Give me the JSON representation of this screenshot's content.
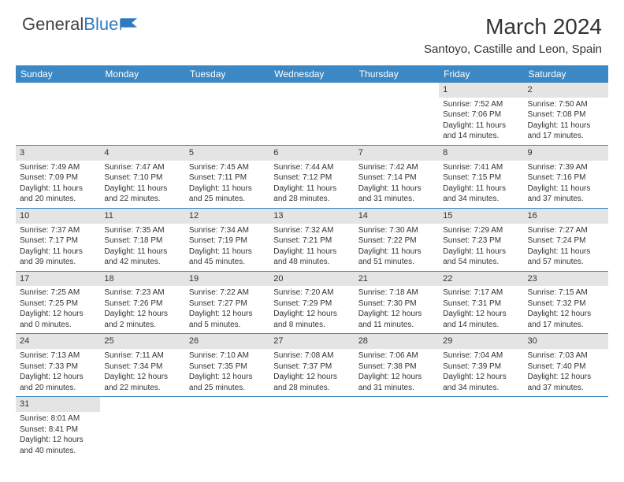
{
  "logo": {
    "text1": "General",
    "text2": "Blue"
  },
  "title": "March 2024",
  "location": "Santoyo, Castille and Leon, Spain",
  "colors": {
    "header_bg": "#3b88c5",
    "header_text": "#ffffff",
    "daynum_bg": "#e4e4e4",
    "border": "#3b88c5",
    "text": "#333333",
    "logo_blue": "#2f7bbf"
  },
  "weekdays": [
    "Sunday",
    "Monday",
    "Tuesday",
    "Wednesday",
    "Thursday",
    "Friday",
    "Saturday"
  ],
  "weeks": [
    [
      null,
      null,
      null,
      null,
      null,
      {
        "n": "1",
        "sr": "Sunrise: 7:52 AM",
        "ss": "Sunset: 7:06 PM",
        "d1": "Daylight: 11 hours",
        "d2": "and 14 minutes."
      },
      {
        "n": "2",
        "sr": "Sunrise: 7:50 AM",
        "ss": "Sunset: 7:08 PM",
        "d1": "Daylight: 11 hours",
        "d2": "and 17 minutes."
      }
    ],
    [
      {
        "n": "3",
        "sr": "Sunrise: 7:49 AM",
        "ss": "Sunset: 7:09 PM",
        "d1": "Daylight: 11 hours",
        "d2": "and 20 minutes."
      },
      {
        "n": "4",
        "sr": "Sunrise: 7:47 AM",
        "ss": "Sunset: 7:10 PM",
        "d1": "Daylight: 11 hours",
        "d2": "and 22 minutes."
      },
      {
        "n": "5",
        "sr": "Sunrise: 7:45 AM",
        "ss": "Sunset: 7:11 PM",
        "d1": "Daylight: 11 hours",
        "d2": "and 25 minutes."
      },
      {
        "n": "6",
        "sr": "Sunrise: 7:44 AM",
        "ss": "Sunset: 7:12 PM",
        "d1": "Daylight: 11 hours",
        "d2": "and 28 minutes."
      },
      {
        "n": "7",
        "sr": "Sunrise: 7:42 AM",
        "ss": "Sunset: 7:14 PM",
        "d1": "Daylight: 11 hours",
        "d2": "and 31 minutes."
      },
      {
        "n": "8",
        "sr": "Sunrise: 7:41 AM",
        "ss": "Sunset: 7:15 PM",
        "d1": "Daylight: 11 hours",
        "d2": "and 34 minutes."
      },
      {
        "n": "9",
        "sr": "Sunrise: 7:39 AM",
        "ss": "Sunset: 7:16 PM",
        "d1": "Daylight: 11 hours",
        "d2": "and 37 minutes."
      }
    ],
    [
      {
        "n": "10",
        "sr": "Sunrise: 7:37 AM",
        "ss": "Sunset: 7:17 PM",
        "d1": "Daylight: 11 hours",
        "d2": "and 39 minutes."
      },
      {
        "n": "11",
        "sr": "Sunrise: 7:35 AM",
        "ss": "Sunset: 7:18 PM",
        "d1": "Daylight: 11 hours",
        "d2": "and 42 minutes."
      },
      {
        "n": "12",
        "sr": "Sunrise: 7:34 AM",
        "ss": "Sunset: 7:19 PM",
        "d1": "Daylight: 11 hours",
        "d2": "and 45 minutes."
      },
      {
        "n": "13",
        "sr": "Sunrise: 7:32 AM",
        "ss": "Sunset: 7:21 PM",
        "d1": "Daylight: 11 hours",
        "d2": "and 48 minutes."
      },
      {
        "n": "14",
        "sr": "Sunrise: 7:30 AM",
        "ss": "Sunset: 7:22 PM",
        "d1": "Daylight: 11 hours",
        "d2": "and 51 minutes."
      },
      {
        "n": "15",
        "sr": "Sunrise: 7:29 AM",
        "ss": "Sunset: 7:23 PM",
        "d1": "Daylight: 11 hours",
        "d2": "and 54 minutes."
      },
      {
        "n": "16",
        "sr": "Sunrise: 7:27 AM",
        "ss": "Sunset: 7:24 PM",
        "d1": "Daylight: 11 hours",
        "d2": "and 57 minutes."
      }
    ],
    [
      {
        "n": "17",
        "sr": "Sunrise: 7:25 AM",
        "ss": "Sunset: 7:25 PM",
        "d1": "Daylight: 12 hours",
        "d2": "and 0 minutes."
      },
      {
        "n": "18",
        "sr": "Sunrise: 7:23 AM",
        "ss": "Sunset: 7:26 PM",
        "d1": "Daylight: 12 hours",
        "d2": "and 2 minutes."
      },
      {
        "n": "19",
        "sr": "Sunrise: 7:22 AM",
        "ss": "Sunset: 7:27 PM",
        "d1": "Daylight: 12 hours",
        "d2": "and 5 minutes."
      },
      {
        "n": "20",
        "sr": "Sunrise: 7:20 AM",
        "ss": "Sunset: 7:29 PM",
        "d1": "Daylight: 12 hours",
        "d2": "and 8 minutes."
      },
      {
        "n": "21",
        "sr": "Sunrise: 7:18 AM",
        "ss": "Sunset: 7:30 PM",
        "d1": "Daylight: 12 hours",
        "d2": "and 11 minutes."
      },
      {
        "n": "22",
        "sr": "Sunrise: 7:17 AM",
        "ss": "Sunset: 7:31 PM",
        "d1": "Daylight: 12 hours",
        "d2": "and 14 minutes."
      },
      {
        "n": "23",
        "sr": "Sunrise: 7:15 AM",
        "ss": "Sunset: 7:32 PM",
        "d1": "Daylight: 12 hours",
        "d2": "and 17 minutes."
      }
    ],
    [
      {
        "n": "24",
        "sr": "Sunrise: 7:13 AM",
        "ss": "Sunset: 7:33 PM",
        "d1": "Daylight: 12 hours",
        "d2": "and 20 minutes."
      },
      {
        "n": "25",
        "sr": "Sunrise: 7:11 AM",
        "ss": "Sunset: 7:34 PM",
        "d1": "Daylight: 12 hours",
        "d2": "and 22 minutes."
      },
      {
        "n": "26",
        "sr": "Sunrise: 7:10 AM",
        "ss": "Sunset: 7:35 PM",
        "d1": "Daylight: 12 hours",
        "d2": "and 25 minutes."
      },
      {
        "n": "27",
        "sr": "Sunrise: 7:08 AM",
        "ss": "Sunset: 7:37 PM",
        "d1": "Daylight: 12 hours",
        "d2": "and 28 minutes."
      },
      {
        "n": "28",
        "sr": "Sunrise: 7:06 AM",
        "ss": "Sunset: 7:38 PM",
        "d1": "Daylight: 12 hours",
        "d2": "and 31 minutes."
      },
      {
        "n": "29",
        "sr": "Sunrise: 7:04 AM",
        "ss": "Sunset: 7:39 PM",
        "d1": "Daylight: 12 hours",
        "d2": "and 34 minutes."
      },
      {
        "n": "30",
        "sr": "Sunrise: 7:03 AM",
        "ss": "Sunset: 7:40 PM",
        "d1": "Daylight: 12 hours",
        "d2": "and 37 minutes."
      }
    ],
    [
      {
        "n": "31",
        "sr": "Sunrise: 8:01 AM",
        "ss": "Sunset: 8:41 PM",
        "d1": "Daylight: 12 hours",
        "d2": "and 40 minutes."
      },
      null,
      null,
      null,
      null,
      null,
      null
    ]
  ]
}
